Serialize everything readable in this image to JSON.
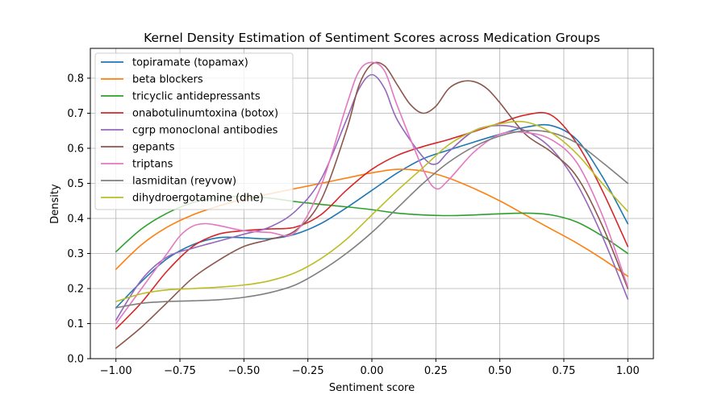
{
  "chart_data": {
    "type": "line",
    "title": "Kernel Density Estimation of Sentiment Scores across Medication Groups",
    "xlabel": "Sentiment score",
    "ylabel": "Density",
    "xlim": [
      -1.1,
      1.1
    ],
    "ylim": [
      0.0,
      0.885
    ],
    "xticks": [
      -1.0,
      -0.75,
      -0.5,
      -0.25,
      0.0,
      0.25,
      0.5,
      0.75,
      1.0
    ],
    "xtick_labels": [
      "−1.00",
      "−0.75",
      "−0.50",
      "−0.25",
      "0.00",
      "0.25",
      "0.50",
      "0.75",
      "1.00"
    ],
    "yticks": [
      0.0,
      0.1,
      0.2,
      0.3,
      0.4,
      0.5,
      0.6,
      0.7,
      0.8
    ],
    "ytick_labels": [
      "0.0",
      "0.1",
      "0.2",
      "0.3",
      "0.4",
      "0.5",
      "0.6",
      "0.7",
      "0.8"
    ],
    "grid": true,
    "legend_position": "top-left",
    "series": [
      {
        "name": "topiramate (topamax)",
        "color": "#1f77b4",
        "x": [
          -1.0,
          -0.9,
          -0.8,
          -0.7,
          -0.6,
          -0.5,
          -0.4,
          -0.3,
          -0.2,
          -0.1,
          0.0,
          0.1,
          0.2,
          0.3,
          0.4,
          0.5,
          0.6,
          0.7,
          0.8,
          0.9,
          1.0
        ],
        "y": [
          0.145,
          0.22,
          0.285,
          0.325,
          0.345,
          0.345,
          0.342,
          0.355,
          0.385,
          0.43,
          0.48,
          0.53,
          0.57,
          0.595,
          0.618,
          0.64,
          0.66,
          0.665,
          0.625,
          0.52,
          0.385
        ]
      },
      {
        "name": "beta blockers",
        "color": "#ff7f0e",
        "x": [
          -1.0,
          -0.9,
          -0.8,
          -0.7,
          -0.6,
          -0.5,
          -0.4,
          -0.3,
          -0.2,
          -0.1,
          0.0,
          0.1,
          0.2,
          0.3,
          0.4,
          0.5,
          0.6,
          0.7,
          0.8,
          0.9,
          1.0
        ],
        "y": [
          0.255,
          0.325,
          0.375,
          0.41,
          0.435,
          0.455,
          0.47,
          0.485,
          0.5,
          0.515,
          0.53,
          0.54,
          0.535,
          0.515,
          0.485,
          0.45,
          0.41,
          0.37,
          0.33,
          0.285,
          0.235
        ]
      },
      {
        "name": "tricyclic antidepressants",
        "color": "#2ca02c",
        "x": [
          -1.0,
          -0.9,
          -0.8,
          -0.7,
          -0.6,
          -0.5,
          -0.4,
          -0.3,
          -0.2,
          -0.1,
          0.0,
          0.1,
          0.2,
          0.3,
          0.4,
          0.5,
          0.6,
          0.7,
          0.8,
          0.9,
          1.0
        ],
        "y": [
          0.305,
          0.37,
          0.415,
          0.445,
          0.46,
          0.463,
          0.458,
          0.448,
          0.44,
          0.433,
          0.425,
          0.415,
          0.41,
          0.408,
          0.41,
          0.413,
          0.415,
          0.41,
          0.39,
          0.35,
          0.3
        ]
      },
      {
        "name": "onabotulinumtoxina (botox)",
        "color": "#d62728",
        "x": [
          -1.0,
          -0.9,
          -0.8,
          -0.7,
          -0.6,
          -0.5,
          -0.4,
          -0.3,
          -0.2,
          -0.1,
          0.0,
          0.1,
          0.2,
          0.3,
          0.4,
          0.5,
          0.6,
          0.7,
          0.8,
          0.9,
          1.0
        ],
        "y": [
          0.085,
          0.16,
          0.25,
          0.32,
          0.355,
          0.365,
          0.37,
          0.375,
          0.41,
          0.48,
          0.54,
          0.58,
          0.605,
          0.625,
          0.648,
          0.672,
          0.695,
          0.695,
          0.615,
          0.48,
          0.32
        ]
      },
      {
        "name": "cgrp monoclonal antibodies",
        "color": "#9467bd",
        "x": [
          -1.0,
          -0.9,
          -0.8,
          -0.7,
          -0.6,
          -0.5,
          -0.4,
          -0.3,
          -0.2,
          -0.1,
          -0.05,
          0.0,
          0.05,
          0.1,
          0.2,
          0.25,
          0.3,
          0.4,
          0.5,
          0.6,
          0.7,
          0.8,
          0.9,
          1.0
        ],
        "y": [
          0.11,
          0.225,
          0.29,
          0.315,
          0.335,
          0.355,
          0.375,
          0.42,
          0.51,
          0.68,
          0.77,
          0.81,
          0.77,
          0.68,
          0.575,
          0.555,
          0.59,
          0.65,
          0.665,
          0.65,
          0.6,
          0.5,
          0.35,
          0.17
        ]
      },
      {
        "name": "gepants",
        "color": "#8c564b",
        "x": [
          -1.0,
          -0.9,
          -0.8,
          -0.7,
          -0.6,
          -0.5,
          -0.4,
          -0.3,
          -0.2,
          -0.1,
          -0.05,
          0.0,
          0.05,
          0.1,
          0.15,
          0.2,
          0.25,
          0.3,
          0.35,
          0.4,
          0.45,
          0.5,
          0.6,
          0.7,
          0.8,
          0.9,
          1.0
        ],
        "y": [
          0.03,
          0.09,
          0.16,
          0.23,
          0.28,
          0.32,
          0.34,
          0.365,
          0.45,
          0.65,
          0.78,
          0.84,
          0.835,
          0.78,
          0.725,
          0.7,
          0.72,
          0.77,
          0.79,
          0.79,
          0.77,
          0.73,
          0.64,
          0.59,
          0.52,
          0.38,
          0.2
        ]
      },
      {
        "name": "triptans",
        "color": "#e377c2",
        "x": [
          -1.0,
          -0.9,
          -0.8,
          -0.75,
          -0.7,
          -0.65,
          -0.6,
          -0.5,
          -0.4,
          -0.3,
          -0.2,
          -0.1,
          -0.05,
          0.0,
          0.05,
          0.1,
          0.2,
          0.25,
          0.3,
          0.4,
          0.5,
          0.6,
          0.7,
          0.8,
          0.9,
          1.0
        ],
        "y": [
          0.1,
          0.2,
          0.3,
          0.35,
          0.378,
          0.385,
          0.38,
          0.365,
          0.36,
          0.36,
          0.49,
          0.72,
          0.82,
          0.845,
          0.82,
          0.72,
          0.54,
          0.485,
          0.51,
          0.59,
          0.64,
          0.645,
          0.625,
          0.56,
          0.41,
          0.205
        ]
      },
      {
        "name": "lasmiditan (reyvow)",
        "color": "#7f7f7f",
        "x": [
          -1.0,
          -0.9,
          -0.8,
          -0.7,
          -0.6,
          -0.5,
          -0.4,
          -0.3,
          -0.2,
          -0.1,
          0.0,
          0.1,
          0.2,
          0.3,
          0.4,
          0.5,
          0.6,
          0.7,
          0.8,
          0.9,
          1.0
        ],
        "y": [
          0.145,
          0.158,
          0.163,
          0.165,
          0.168,
          0.175,
          0.188,
          0.21,
          0.25,
          0.3,
          0.36,
          0.43,
          0.5,
          0.56,
          0.605,
          0.635,
          0.65,
          0.645,
          0.615,
          0.56,
          0.5
        ]
      },
      {
        "name": "dihydroergotamine (dhe)",
        "color": "#bcbd22",
        "x": [
          -1.0,
          -0.9,
          -0.8,
          -0.7,
          -0.6,
          -0.5,
          -0.4,
          -0.3,
          -0.2,
          -0.1,
          0.0,
          0.1,
          0.2,
          0.3,
          0.4,
          0.5,
          0.6,
          0.7,
          0.8,
          0.9,
          1.0
        ],
        "y": [
          0.163,
          0.185,
          0.196,
          0.2,
          0.204,
          0.21,
          0.222,
          0.245,
          0.285,
          0.34,
          0.41,
          0.48,
          0.545,
          0.61,
          0.65,
          0.67,
          0.675,
          0.645,
          0.585,
          0.5,
          0.42
        ]
      }
    ]
  }
}
